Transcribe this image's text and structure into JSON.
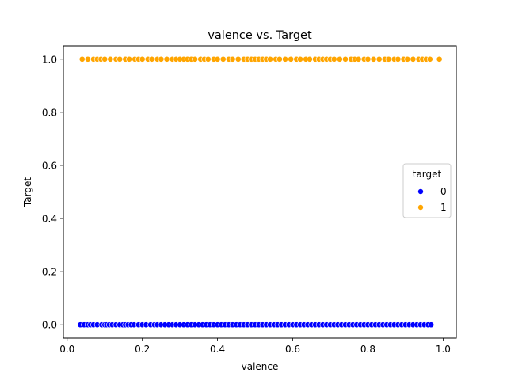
{
  "chart_data": {
    "type": "scatter",
    "title": "valence vs. Target",
    "xlabel": "valence",
    "ylabel": "Target",
    "xlim": [
      -0.01,
      1.035
    ],
    "ylim": [
      -0.05,
      1.05
    ],
    "xticks": [
      0.0,
      0.2,
      0.4,
      0.6,
      0.8,
      1.0
    ],
    "xtick_labels": [
      "0.0",
      "0.2",
      "0.4",
      "0.6",
      "0.8",
      "1.0"
    ],
    "yticks": [
      0.0,
      0.2,
      0.4,
      0.6,
      0.8,
      1.0
    ],
    "ytick_labels": [
      "0.0",
      "0.2",
      "0.4",
      "0.6",
      "0.8",
      "1.0"
    ],
    "grid": false,
    "legend": {
      "title": "target",
      "placement": "center-right"
    },
    "series": [
      {
        "name": "0",
        "color": "#0000ff",
        "y": 0,
        "x": [
          0.035,
          0.045,
          0.055,
          0.062,
          0.07,
          0.08,
          0.092,
          0.1,
          0.105,
          0.112,
          0.12,
          0.13,
          0.14,
          0.148,
          0.155,
          0.162,
          0.17,
          0.178,
          0.19,
          0.2,
          0.21,
          0.222,
          0.232,
          0.24,
          0.25,
          0.26,
          0.27,
          0.28,
          0.29,
          0.3,
          0.31,
          0.32,
          0.33,
          0.34,
          0.35,
          0.36,
          0.37,
          0.38,
          0.39,
          0.4,
          0.41,
          0.42,
          0.43,
          0.44,
          0.45,
          0.46,
          0.47,
          0.48,
          0.49,
          0.5,
          0.51,
          0.52,
          0.53,
          0.54,
          0.55,
          0.56,
          0.57,
          0.58,
          0.59,
          0.6,
          0.61,
          0.62,
          0.63,
          0.64,
          0.65,
          0.66,
          0.67,
          0.68,
          0.69,
          0.7,
          0.71,
          0.72,
          0.73,
          0.74,
          0.75,
          0.76,
          0.77,
          0.78,
          0.79,
          0.8,
          0.81,
          0.82,
          0.83,
          0.84,
          0.85,
          0.86,
          0.87,
          0.88,
          0.89,
          0.9,
          0.91,
          0.92,
          0.93,
          0.94,
          0.95,
          0.96,
          0.968
        ]
      },
      {
        "name": "1",
        "color": "#ffa500",
        "y": 1,
        "x": [
          0.04,
          0.055,
          0.07,
          0.08,
          0.09,
          0.1,
          0.115,
          0.13,
          0.14,
          0.155,
          0.165,
          0.18,
          0.19,
          0.2,
          0.215,
          0.225,
          0.24,
          0.25,
          0.265,
          0.28,
          0.29,
          0.3,
          0.31,
          0.32,
          0.33,
          0.34,
          0.355,
          0.365,
          0.375,
          0.39,
          0.4,
          0.415,
          0.43,
          0.44,
          0.455,
          0.47,
          0.48,
          0.49,
          0.5,
          0.51,
          0.52,
          0.53,
          0.54,
          0.555,
          0.565,
          0.58,
          0.595,
          0.61,
          0.62,
          0.635,
          0.645,
          0.66,
          0.67,
          0.68,
          0.69,
          0.7,
          0.71,
          0.725,
          0.74,
          0.755,
          0.765,
          0.775,
          0.79,
          0.8,
          0.815,
          0.83,
          0.845,
          0.855,
          0.87,
          0.88,
          0.895,
          0.905,
          0.92,
          0.935,
          0.945,
          0.955,
          0.965,
          0.99
        ]
      }
    ]
  }
}
